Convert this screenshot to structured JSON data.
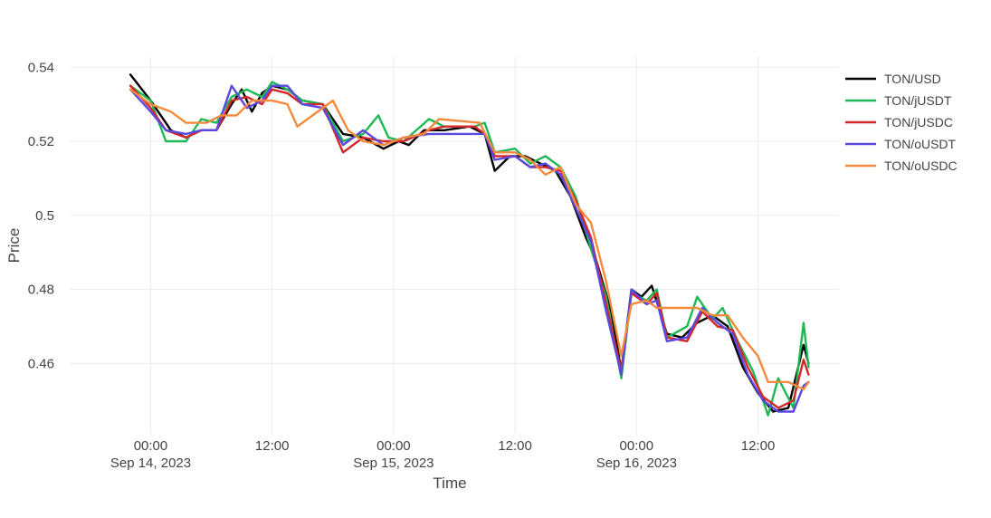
{
  "chart_data": {
    "type": "line",
    "title": "",
    "xlabel": "Time",
    "ylabel": "Price",
    "x_unit": "datetime",
    "xlim": [
      "2023-09-13 16:00",
      "2023-09-16 20:00"
    ],
    "ylim": [
      0.441,
      0.543
    ],
    "grid": true,
    "legend_position": "right",
    "x_ticks": [
      {
        "value": "2023-09-14 00:00",
        "label": "00:00",
        "sublabel": "Sep 14, 2023"
      },
      {
        "value": "2023-09-14 12:00",
        "label": "12:00",
        "sublabel": ""
      },
      {
        "value": "2023-09-15 00:00",
        "label": "00:00",
        "sublabel": "Sep 15, 2023"
      },
      {
        "value": "2023-09-15 12:00",
        "label": "12:00",
        "sublabel": ""
      },
      {
        "value": "2023-09-16 00:00",
        "label": "00:00",
        "sublabel": "Sep 16, 2023"
      },
      {
        "value": "2023-09-16 12:00",
        "label": "12:00",
        "sublabel": ""
      }
    ],
    "y_ticks": [
      {
        "value": 0.54,
        "label": "0.54"
      },
      {
        "value": 0.52,
        "label": "0.52"
      },
      {
        "value": 0.5,
        "label": "0.5"
      },
      {
        "value": 0.48,
        "label": "0.48"
      },
      {
        "value": 0.46,
        "label": "0.46"
      }
    ],
    "series": [
      {
        "name": "TON/USD",
        "color": "#000000",
        "points": [
          [
            "2023-09-13 22:00",
            0.538
          ],
          [
            "2023-09-14 00:00",
            0.531
          ],
          [
            "2023-09-14 02:00",
            0.523
          ],
          [
            "2023-09-14 03:30",
            0.521
          ],
          [
            "2023-09-14 05:00",
            0.523
          ],
          [
            "2023-09-14 06:30",
            0.523
          ],
          [
            "2023-09-14 08:00",
            0.53
          ],
          [
            "2023-09-14 09:00",
            0.534
          ],
          [
            "2023-09-14 10:00",
            0.528
          ],
          [
            "2023-09-14 11:00",
            0.533
          ],
          [
            "2023-09-14 12:00",
            0.535
          ],
          [
            "2023-09-14 13:30",
            0.534
          ],
          [
            "2023-09-14 15:00",
            0.531
          ],
          [
            "2023-09-14 17:00",
            0.53
          ],
          [
            "2023-09-14 19:00",
            0.522
          ],
          [
            "2023-09-14 21:00",
            0.521
          ],
          [
            "2023-09-14 23:00",
            0.518
          ],
          [
            "2023-09-15 00:30",
            0.52
          ],
          [
            "2023-09-15 01:30",
            0.519
          ],
          [
            "2023-09-15 03:00",
            0.523
          ],
          [
            "2023-09-15 05:00",
            0.523
          ],
          [
            "2023-09-15 07:30",
            0.524
          ],
          [
            "2023-09-15 09:00",
            0.522
          ],
          [
            "2023-09-15 10:00",
            0.512
          ],
          [
            "2023-09-15 11:30",
            0.516
          ],
          [
            "2023-09-15 13:00",
            0.516
          ],
          [
            "2023-09-15 14:30",
            0.514
          ],
          [
            "2023-09-15 16:00",
            0.512
          ],
          [
            "2023-09-15 17:30",
            0.505
          ],
          [
            "2023-09-15 19:00",
            0.494
          ],
          [
            "2023-09-15 20:00",
            0.488
          ],
          [
            "2023-09-15 21:30",
            0.474
          ],
          [
            "2023-09-15 22:30",
            0.458
          ],
          [
            "2023-09-15 23:30",
            0.48
          ],
          [
            "2023-09-16 00:30",
            0.478
          ],
          [
            "2023-09-16 01:30",
            0.481
          ],
          [
            "2023-09-16 03:00",
            0.468
          ],
          [
            "2023-09-16 04:30",
            0.467
          ],
          [
            "2023-09-16 06:00",
            0.471
          ],
          [
            "2023-09-16 07:30",
            0.473
          ],
          [
            "2023-09-16 09:00",
            0.47
          ],
          [
            "2023-09-16 10:30",
            0.459
          ],
          [
            "2023-09-16 12:00",
            0.452
          ],
          [
            "2023-09-16 13:30",
            0.447
          ],
          [
            "2023-09-16 15:00",
            0.448
          ],
          [
            "2023-09-16 16:30",
            0.465
          ],
          [
            "2023-09-16 17:00",
            0.46
          ]
        ]
      },
      {
        "name": "TON/jUSDT",
        "color": "#1db954",
        "points": [
          [
            "2023-09-13 22:00",
            0.535
          ],
          [
            "2023-09-14 00:00",
            0.531
          ],
          [
            "2023-09-14 01:30",
            0.52
          ],
          [
            "2023-09-14 03:30",
            0.52
          ],
          [
            "2023-09-14 05:00",
            0.526
          ],
          [
            "2023-09-14 06:30",
            0.525
          ],
          [
            "2023-09-14 08:00",
            0.532
          ],
          [
            "2023-09-14 09:30",
            0.534
          ],
          [
            "2023-09-14 11:00",
            0.532
          ],
          [
            "2023-09-14 12:00",
            0.536
          ],
          [
            "2023-09-14 13:30",
            0.534
          ],
          [
            "2023-09-14 15:00",
            0.531
          ],
          [
            "2023-09-14 17:00",
            0.53
          ],
          [
            "2023-09-14 19:00",
            0.52
          ],
          [
            "2023-09-14 21:00",
            0.522
          ],
          [
            "2023-09-14 22:30",
            0.527
          ],
          [
            "2023-09-14 23:30",
            0.521
          ],
          [
            "2023-09-15 01:00",
            0.52
          ],
          [
            "2023-09-15 03:30",
            0.526
          ],
          [
            "2023-09-15 05:00",
            0.524
          ],
          [
            "2023-09-15 08:00",
            0.524
          ],
          [
            "2023-09-15 09:00",
            0.525
          ],
          [
            "2023-09-15 10:00",
            0.517
          ],
          [
            "2023-09-15 12:00",
            0.518
          ],
          [
            "2023-09-15 13:30",
            0.514
          ],
          [
            "2023-09-15 15:00",
            0.516
          ],
          [
            "2023-09-15 16:30",
            0.513
          ],
          [
            "2023-09-15 18:00",
            0.505
          ],
          [
            "2023-09-15 19:30",
            0.491
          ],
          [
            "2023-09-15 21:00",
            0.478
          ],
          [
            "2023-09-15 22:30",
            0.456
          ],
          [
            "2023-09-15 23:30",
            0.479
          ],
          [
            "2023-09-16 01:00",
            0.477
          ],
          [
            "2023-09-16 02:00",
            0.48
          ],
          [
            "2023-09-16 03:00",
            0.467
          ],
          [
            "2023-09-16 05:00",
            0.47
          ],
          [
            "2023-09-16 06:00",
            0.478
          ],
          [
            "2023-09-16 07:30",
            0.472
          ],
          [
            "2023-09-16 08:30",
            0.475
          ],
          [
            "2023-09-16 10:00",
            0.466
          ],
          [
            "2023-09-16 11:30",
            0.458
          ],
          [
            "2023-09-16 13:00",
            0.446
          ],
          [
            "2023-09-16 14:00",
            0.456
          ],
          [
            "2023-09-16 15:30",
            0.448
          ],
          [
            "2023-09-16 16:30",
            0.471
          ],
          [
            "2023-09-16 17:00",
            0.459
          ]
        ]
      },
      {
        "name": "TON/jUSDC",
        "color": "#d62728",
        "points": [
          [
            "2023-09-13 22:00",
            0.535
          ],
          [
            "2023-09-14 00:00",
            0.529
          ],
          [
            "2023-09-14 01:30",
            0.523
          ],
          [
            "2023-09-14 03:30",
            0.521
          ],
          [
            "2023-09-14 05:00",
            0.523
          ],
          [
            "2023-09-14 06:30",
            0.523
          ],
          [
            "2023-09-14 08:00",
            0.531
          ],
          [
            "2023-09-14 09:30",
            0.532
          ],
          [
            "2023-09-14 11:00",
            0.53
          ],
          [
            "2023-09-14 12:00",
            0.534
          ],
          [
            "2023-09-14 13:30",
            0.533
          ],
          [
            "2023-09-14 15:00",
            0.53
          ],
          [
            "2023-09-14 17:00",
            0.53
          ],
          [
            "2023-09-14 19:00",
            0.517
          ],
          [
            "2023-09-14 21:00",
            0.521
          ],
          [
            "2023-09-14 23:00",
            0.52
          ],
          [
            "2023-09-15 01:00",
            0.52
          ],
          [
            "2023-09-15 03:30",
            0.523
          ],
          [
            "2023-09-15 05:00",
            0.524
          ],
          [
            "2023-09-15 08:00",
            0.524
          ],
          [
            "2023-09-15 09:00",
            0.522
          ],
          [
            "2023-09-15 10:00",
            0.516
          ],
          [
            "2023-09-15 12:00",
            0.516
          ],
          [
            "2023-09-15 13:30",
            0.513
          ],
          [
            "2023-09-15 15:00",
            0.513
          ],
          [
            "2023-09-15 16:30",
            0.512
          ],
          [
            "2023-09-15 18:00",
            0.504
          ],
          [
            "2023-09-15 19:30",
            0.494
          ],
          [
            "2023-09-15 21:00",
            0.476
          ],
          [
            "2023-09-15 22:30",
            0.458
          ],
          [
            "2023-09-15 23:30",
            0.479
          ],
          [
            "2023-09-16 01:00",
            0.476
          ],
          [
            "2023-09-16 02:00",
            0.479
          ],
          [
            "2023-09-16 03:00",
            0.467
          ],
          [
            "2023-09-16 05:00",
            0.466
          ],
          [
            "2023-09-16 06:30",
            0.474
          ],
          [
            "2023-09-16 08:00",
            0.47
          ],
          [
            "2023-09-16 09:30",
            0.469
          ],
          [
            "2023-09-16 11:00",
            0.459
          ],
          [
            "2023-09-16 12:30",
            0.451
          ],
          [
            "2023-09-16 14:00",
            0.448
          ],
          [
            "2023-09-16 15:30",
            0.45
          ],
          [
            "2023-09-16 16:30",
            0.461
          ],
          [
            "2023-09-16 17:00",
            0.457
          ]
        ]
      },
      {
        "name": "TON/oUSDT",
        "color": "#5b48e0",
        "points": [
          [
            "2023-09-13 22:00",
            0.534
          ],
          [
            "2023-09-14 00:00",
            0.528
          ],
          [
            "2023-09-14 01:30",
            0.523
          ],
          [
            "2023-09-14 03:30",
            0.522
          ],
          [
            "2023-09-14 05:00",
            0.523
          ],
          [
            "2023-09-14 06:30",
            0.523
          ],
          [
            "2023-09-14 08:00",
            0.535
          ],
          [
            "2023-09-14 09:30",
            0.529
          ],
          [
            "2023-09-14 11:00",
            0.531
          ],
          [
            "2023-09-14 12:00",
            0.535
          ],
          [
            "2023-09-14 13:30",
            0.535
          ],
          [
            "2023-09-14 15:00",
            0.53
          ],
          [
            "2023-09-14 17:00",
            0.529
          ],
          [
            "2023-09-14 19:00",
            0.519
          ],
          [
            "2023-09-14 21:00",
            0.523
          ],
          [
            "2023-09-14 23:00",
            0.519
          ],
          [
            "2023-09-15 01:00",
            0.521
          ],
          [
            "2023-09-15 03:30",
            0.522
          ],
          [
            "2023-09-15 06:00",
            0.522
          ],
          [
            "2023-09-15 08:00",
            0.522
          ],
          [
            "2023-09-15 09:00",
            0.522
          ],
          [
            "2023-09-15 10:00",
            0.515
          ],
          [
            "2023-09-15 12:00",
            0.516
          ],
          [
            "2023-09-15 13:30",
            0.513
          ],
          [
            "2023-09-15 15:00",
            0.514
          ],
          [
            "2023-09-15 16:30",
            0.511
          ],
          [
            "2023-09-15 18:00",
            0.502
          ],
          [
            "2023-09-15 19:30",
            0.493
          ],
          [
            "2023-09-15 21:00",
            0.474
          ],
          [
            "2023-09-15 22:30",
            0.457
          ],
          [
            "2023-09-15 23:30",
            0.48
          ],
          [
            "2023-09-16 01:00",
            0.476
          ],
          [
            "2023-09-16 02:00",
            0.477
          ],
          [
            "2023-09-16 03:00",
            0.466
          ],
          [
            "2023-09-16 05:00",
            0.467
          ],
          [
            "2023-09-16 06:30",
            0.475
          ],
          [
            "2023-09-16 08:00",
            0.471
          ],
          [
            "2023-09-16 09:30",
            0.468
          ],
          [
            "2023-09-16 11:00",
            0.457
          ],
          [
            "2023-09-16 12:30",
            0.45
          ],
          [
            "2023-09-16 14:00",
            0.447
          ],
          [
            "2023-09-16 15:30",
            0.447
          ],
          [
            "2023-09-16 16:30",
            0.454
          ],
          [
            "2023-09-16 17:00",
            0.455
          ]
        ]
      },
      {
        "name": "TON/oUSDC",
        "color": "#f58a3d",
        "points": [
          [
            "2023-09-13 22:00",
            0.534
          ],
          [
            "2023-09-14 00:00",
            0.53
          ],
          [
            "2023-09-14 02:00",
            0.528
          ],
          [
            "2023-09-14 03:30",
            0.525
          ],
          [
            "2023-09-14 05:30",
            0.525
          ],
          [
            "2023-09-14 07:00",
            0.527
          ],
          [
            "2023-09-14 08:30",
            0.527
          ],
          [
            "2023-09-14 10:00",
            0.531
          ],
          [
            "2023-09-14 12:00",
            0.531
          ],
          [
            "2023-09-14 13:30",
            0.53
          ],
          [
            "2023-09-14 14:30",
            0.524
          ],
          [
            "2023-09-14 16:00",
            0.527
          ],
          [
            "2023-09-14 18:00",
            0.531
          ],
          [
            "2023-09-14 19:30",
            0.523
          ],
          [
            "2023-09-14 21:00",
            0.52
          ],
          [
            "2023-09-14 23:00",
            0.519
          ],
          [
            "2023-09-15 01:00",
            0.521
          ],
          [
            "2023-09-15 03:00",
            0.522
          ],
          [
            "2023-09-15 04:30",
            0.526
          ],
          [
            "2023-09-15 08:30",
            0.525
          ],
          [
            "2023-09-15 10:00",
            0.517
          ],
          [
            "2023-09-15 12:00",
            0.517
          ],
          [
            "2023-09-15 13:30",
            0.515
          ],
          [
            "2023-09-15 15:00",
            0.511
          ],
          [
            "2023-09-15 16:30",
            0.513
          ],
          [
            "2023-09-15 18:00",
            0.503
          ],
          [
            "2023-09-15 19:30",
            0.498
          ],
          [
            "2023-09-15 21:00",
            0.482
          ],
          [
            "2023-09-15 22:30",
            0.462
          ],
          [
            "2023-09-15 23:30",
            0.476
          ],
          [
            "2023-09-16 01:00",
            0.477
          ],
          [
            "2023-09-16 02:00",
            0.475
          ],
          [
            "2023-09-16 04:00",
            0.475
          ],
          [
            "2023-09-16 06:00",
            0.475
          ],
          [
            "2023-09-16 07:30",
            0.473
          ],
          [
            "2023-09-16 09:00",
            0.473
          ],
          [
            "2023-09-16 10:30",
            0.467
          ],
          [
            "2023-09-16 12:00",
            0.462
          ],
          [
            "2023-09-16 13:00",
            0.455
          ],
          [
            "2023-09-16 15:00",
            0.455
          ],
          [
            "2023-09-16 16:30",
            0.453
          ],
          [
            "2023-09-16 17:00",
            0.455
          ]
        ]
      }
    ]
  }
}
